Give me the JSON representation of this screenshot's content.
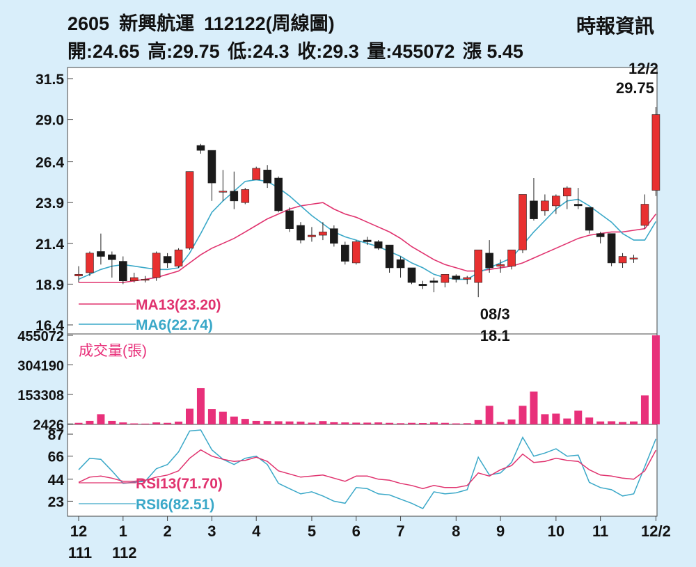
{
  "header": {
    "code": "2605",
    "name": "新興航運",
    "title_suffix": "112122(周線圖)",
    "source": "時報資訊",
    "open": "開:24.65",
    "high": "高:29.75",
    "low": "低:24.3",
    "close": "收:29.3",
    "volume": "量:455072",
    "change": "漲 5.45"
  },
  "chart_data": [
    {
      "type": "candlestick",
      "title": "",
      "ylim": [
        16.4,
        31.5
      ],
      "y_ticks": [
        "31.5",
        "29.0",
        "26.4",
        "23.9",
        "21.4",
        "18.9",
        "16.4"
      ],
      "x_ticks": [
        {
          "label": "12",
          "sub": "111",
          "week": 0
        },
        {
          "label": "1",
          "sub": "112",
          "week": 4
        },
        {
          "label": "2",
          "sub": "",
          "week": 8
        },
        {
          "label": "3",
          "sub": "",
          "week": 12
        },
        {
          "label": "4",
          "sub": "",
          "week": 16
        },
        {
          "label": "5",
          "sub": "",
          "week": 21
        },
        {
          "label": "6",
          "sub": "",
          "week": 25
        },
        {
          "label": "7",
          "sub": "",
          "week": 29
        },
        {
          "label": "8",
          "sub": "",
          "week": 34
        },
        {
          "label": "9",
          "sub": "",
          "week": 38
        },
        {
          "label": "10",
          "sub": "",
          "week": 43
        },
        {
          "label": "11",
          "sub": "",
          "week": 47
        },
        {
          "label": "12/2",
          "sub": "",
          "week": 52
        }
      ],
      "candles": [
        [
          19.4,
          19.5,
          20.0,
          19.0
        ],
        [
          19.6,
          20.8,
          20.9,
          19.4
        ],
        [
          20.9,
          20.6,
          22.0,
          20.1
        ],
        [
          20.7,
          20.4,
          20.9,
          19.3
        ],
        [
          20.3,
          19.1,
          20.6,
          18.9
        ],
        [
          19.1,
          19.3,
          19.6,
          19.0
        ],
        [
          19.2,
          19.2,
          19.4,
          19.0
        ],
        [
          19.3,
          20.8,
          20.9,
          19.1
        ],
        [
          20.6,
          20.2,
          20.8,
          19.9
        ],
        [
          20.0,
          21.0,
          21.1,
          19.9
        ],
        [
          21.1,
          25.8,
          25.8,
          21.0
        ],
        [
          27.4,
          27.1,
          27.5,
          26.9
        ],
        [
          27.1,
          25.1,
          27.1,
          24.0
        ],
        [
          24.6,
          24.6,
          25.9,
          24.0
        ],
        [
          24.6,
          24.0,
          25.8,
          23.5
        ],
        [
          23.9,
          24.7,
          24.8,
          23.8
        ],
        [
          25.3,
          26.0,
          26.1,
          25.3
        ],
        [
          25.9,
          25.1,
          26.2,
          24.8
        ],
        [
          25.4,
          23.4,
          25.5,
          23.3
        ],
        [
          23.4,
          22.3,
          23.6,
          22.1
        ],
        [
          22.5,
          21.6,
          22.7,
          21.4
        ],
        [
          21.8,
          21.9,
          22.4,
          21.5
        ],
        [
          21.9,
          22.1,
          22.7,
          21.6
        ],
        [
          22.3,
          21.4,
          22.5,
          21.2
        ],
        [
          21.3,
          20.3,
          21.5,
          20.1
        ],
        [
          20.2,
          21.5,
          21.6,
          20.1
        ],
        [
          21.6,
          21.5,
          21.8,
          21.3
        ],
        [
          21.5,
          21.1,
          21.6,
          21.0
        ],
        [
          21.3,
          19.9,
          21.3,
          19.6
        ],
        [
          20.4,
          19.9,
          20.6,
          19.3
        ],
        [
          19.9,
          19.0,
          19.9,
          18.9
        ],
        [
          18.9,
          18.8,
          19.1,
          18.6
        ],
        [
          19.1,
          19.0,
          19.3,
          18.4
        ],
        [
          19.0,
          19.5,
          19.5,
          18.7
        ],
        [
          19.4,
          19.2,
          19.5,
          19.0
        ],
        [
          19.2,
          19.3,
          19.4,
          18.9
        ],
        [
          19.0,
          21.0,
          21.0,
          18.1
        ],
        [
          20.8,
          19.9,
          21.6,
          19.6
        ],
        [
          20.0,
          20.1,
          20.4,
          19.6
        ],
        [
          20.0,
          21.0,
          21.0,
          19.8
        ],
        [
          21.0,
          24.4,
          24.4,
          20.8
        ],
        [
          24.0,
          22.9,
          25.4,
          22.8
        ],
        [
          23.4,
          24.0,
          24.4,
          23.1
        ],
        [
          23.7,
          24.3,
          24.4,
          23.2
        ],
        [
          24.3,
          24.8,
          24.9,
          23.5
        ],
        [
          23.8,
          23.7,
          24.8,
          23.5
        ],
        [
          23.6,
          22.2,
          23.6,
          22.0
        ],
        [
          22.0,
          21.8,
          22.1,
          21.4
        ],
        [
          22.0,
          20.2,
          22.0,
          20.0
        ],
        [
          20.2,
          20.6,
          20.8,
          19.9
        ],
        [
          20.5,
          20.5,
          20.7,
          20.2
        ],
        [
          22.5,
          23.8,
          24.4,
          22.3
        ],
        [
          24.65,
          29.3,
          29.75,
          24.3
        ]
      ],
      "ma13": {
        "name": "MA13(23.20)",
        "values": [
          19.0,
          19.0,
          19.0,
          19.0,
          19.0,
          19.1,
          19.2,
          19.3,
          19.5,
          19.7,
          20.2,
          20.7,
          21.1,
          21.4,
          21.7,
          22.1,
          22.5,
          22.9,
          23.2,
          23.5,
          23.7,
          23.8,
          23.9,
          23.5,
          23.2,
          23.0,
          22.7,
          22.4,
          22.1,
          21.7,
          21.2,
          20.8,
          20.4,
          20.1,
          19.9,
          19.7,
          19.7,
          19.8,
          19.9,
          20.0,
          20.2,
          20.5,
          20.8,
          21.1,
          21.4,
          21.7,
          21.9,
          22.0,
          22.1,
          22.1,
          22.2,
          22.3,
          23.2
        ]
      },
      "ma6": {
        "name": "MA6(22.74)",
        "values": [
          19.2,
          19.5,
          19.8,
          20.0,
          20.1,
          20.0,
          19.9,
          19.8,
          19.8,
          19.9,
          20.8,
          22.0,
          23.3,
          24.0,
          24.6,
          25.2,
          25.3,
          25.2,
          24.8,
          24.3,
          23.7,
          23.1,
          22.6,
          22.1,
          21.8,
          21.6,
          21.4,
          21.2,
          20.9,
          20.6,
          20.2,
          19.9,
          19.5,
          19.3,
          19.2,
          19.2,
          19.6,
          19.9,
          20.2,
          20.5,
          21.3,
          22.1,
          22.8,
          23.5,
          24.0,
          24.1,
          23.7,
          23.2,
          22.7,
          22.0,
          21.6,
          21.6,
          22.74
        ]
      },
      "ma_colors": {
        "ma13": "#e0326e",
        "ma6": "#3aa8c8"
      },
      "annotations": [
        {
          "week": 52,
          "date": "12/2",
          "value": "29.75",
          "kind": "high"
        },
        {
          "week": 36,
          "date": "08/3",
          "value": "18.1",
          "kind": "low"
        }
      ],
      "candle_colors": {
        "up": "#e83030",
        "down": "#1a1a1a"
      }
    },
    {
      "type": "bar",
      "title": "成交量(張)",
      "ylim": [
        0,
        455072
      ],
      "y_ticks": [
        "455072",
        "304190",
        "153308",
        "2426"
      ],
      "color": "#e8307a",
      "values": [
        8000,
        18000,
        52000,
        18000,
        10000,
        5000,
        4000,
        10000,
        8000,
        14000,
        80000,
        185000,
        78000,
        65000,
        40000,
        28000,
        18000,
        17000,
        16000,
        15000,
        14000,
        9000,
        17000,
        11000,
        10000,
        9000,
        9000,
        10000,
        8000,
        6000,
        8000,
        7000,
        10000,
        8000,
        5000,
        6000,
        22000,
        95000,
        12000,
        25000,
        95000,
        168000,
        52000,
        55000,
        30000,
        70000,
        35000,
        15000,
        16000,
        12000,
        15000,
        148000,
        455072
      ]
    },
    {
      "type": "line",
      "title": "",
      "ylim": [
        10,
        95
      ],
      "y_ticks": [
        "87",
        "66",
        "44",
        "23"
      ],
      "rsi13": {
        "name": "RSI13(71.70)",
        "values": [
          41,
          46,
          47,
          45,
          42,
          42,
          43,
          46,
          48,
          52,
          64,
          72,
          66,
          63,
          61,
          62,
          65,
          61,
          52,
          49,
          46,
          47,
          48,
          45,
          42,
          47,
          47,
          44,
          43,
          40,
          38,
          35,
          38,
          36,
          36,
          38,
          50,
          47,
          53,
          57,
          68,
          60,
          61,
          64,
          62,
          61,
          53,
          48,
          47,
          45,
          44,
          52,
          71.7
        ]
      },
      "rsi6": {
        "name": "RSI6(82.51)",
        "values": [
          53,
          64,
          63,
          52,
          40,
          41,
          42,
          54,
          58,
          70,
          90,
          91,
          72,
          63,
          58,
          64,
          66,
          58,
          40,
          35,
          30,
          32,
          28,
          23,
          21,
          36,
          35,
          30,
          29,
          25,
          21,
          16,
          32,
          30,
          31,
          34,
          65,
          48,
          50,
          60,
          84,
          66,
          69,
          73,
          66,
          67,
          41,
          36,
          34,
          28,
          30,
          56,
          82.51
        ]
      },
      "colors": {
        "rsi13": "#e0326e",
        "rsi6": "#3aa8c8"
      }
    }
  ]
}
